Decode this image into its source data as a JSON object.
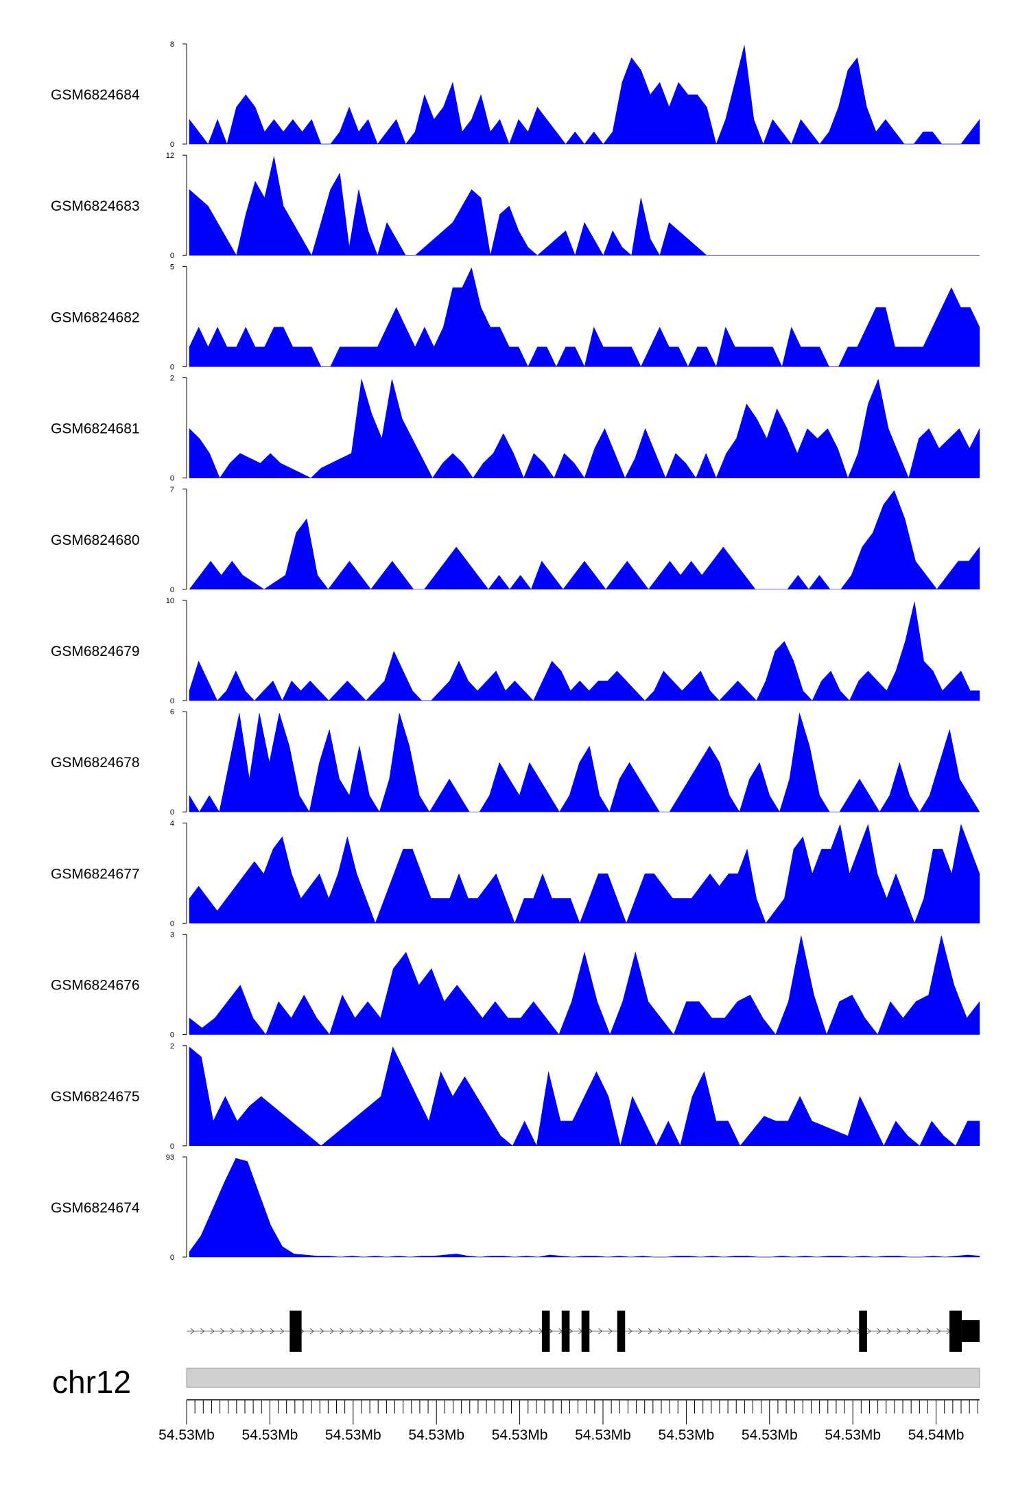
{
  "chart_data": {
    "type": "area",
    "chromosome": "chr12",
    "x_tick_labels": [
      "54.53Mb",
      "54.53Mb",
      "54.53Mb",
      "54.53Mb",
      "54.53Mb",
      "54.53Mb",
      "54.53Mb",
      "54.53Mb",
      "54.53Mb",
      "54.54Mb"
    ],
    "fill_color": "#0000FF",
    "series": [
      {
        "name": "GSM6824684",
        "ymax": 8,
        "values": [
          2,
          1,
          0,
          2,
          0,
          3,
          4,
          3,
          1,
          2,
          1,
          2,
          1,
          2,
          0,
          0,
          1,
          3,
          1,
          2,
          0,
          1,
          2,
          0,
          1,
          4,
          2,
          3,
          5,
          1,
          2,
          4,
          1,
          2,
          0,
          2,
          1,
          3,
          2,
          1,
          0,
          1,
          0,
          1,
          0,
          1,
          5,
          7,
          6,
          4,
          5,
          3,
          5,
          4,
          4,
          3,
          0,
          2,
          5,
          8,
          2,
          0,
          2,
          1,
          0,
          2,
          1,
          0,
          1,
          3,
          6,
          7,
          3,
          1,
          2,
          1,
          0,
          0,
          1,
          1,
          0,
          0,
          0,
          1,
          2
        ]
      },
      {
        "name": "GSM6824683",
        "ymax": 12,
        "values": [
          8,
          7,
          6,
          4,
          2,
          0,
          5,
          9,
          7,
          12,
          6,
          4,
          2,
          0,
          4,
          8,
          10,
          1,
          8,
          3,
          0,
          4,
          2,
          0,
          0,
          1,
          2,
          3,
          4,
          6,
          8,
          7,
          0,
          5,
          6,
          3,
          1,
          0,
          1,
          2,
          3,
          0,
          4,
          2,
          0,
          3,
          1,
          0,
          7,
          2,
          0,
          4,
          3,
          2,
          1,
          0,
          0,
          0,
          0,
          0,
          0,
          0,
          0,
          0,
          0,
          0,
          0,
          0,
          0,
          0,
          0,
          0,
          0,
          0,
          0,
          0,
          0,
          0,
          0,
          0,
          0,
          0,
          0,
          0,
          0
        ]
      },
      {
        "name": "GSM6824682",
        "ymax": 5,
        "values": [
          1,
          2,
          1,
          2,
          1,
          1,
          2,
          1,
          1,
          2,
          2,
          1,
          1,
          1,
          0,
          0,
          1,
          1,
          1,
          1,
          1,
          2,
          3,
          2,
          1,
          2,
          1,
          2,
          4,
          4,
          5,
          3,
          2,
          2,
          1,
          1,
          0,
          1,
          1,
          0,
          1,
          1,
          0,
          2,
          1,
          1,
          1,
          1,
          0,
          1,
          2,
          1,
          1,
          0,
          1,
          1,
          0,
          2,
          1,
          1,
          1,
          1,
          1,
          0,
          2,
          1,
          1,
          1,
          0,
          0,
          1,
          1,
          2,
          3,
          3,
          1,
          1,
          1,
          1,
          2,
          3,
          4,
          3,
          3,
          2
        ]
      },
      {
        "name": "GSM6824681",
        "ymax": 2,
        "values": [
          1,
          0.8,
          0.5,
          0,
          0.3,
          0.5,
          0.4,
          0.3,
          0.5,
          0.3,
          0.2,
          0.1,
          0,
          0.2,
          0.3,
          0.4,
          0.5,
          2,
          1.3,
          0.8,
          2,
          1.2,
          0.8,
          0.4,
          0,
          0.3,
          0.5,
          0.3,
          0,
          0.3,
          0.5,
          0.9,
          0.5,
          0,
          0.5,
          0.3,
          0,
          0.5,
          0.3,
          0,
          0.6,
          1,
          0.5,
          0,
          0.4,
          1,
          0.5,
          0,
          0.5,
          0.3,
          0,
          0.5,
          0,
          0.5,
          0.8,
          1.5,
          1.2,
          0.8,
          1.4,
          1,
          0.5,
          1,
          0.8,
          1,
          0.6,
          0,
          0.5,
          1.5,
          2,
          1,
          0.5,
          0,
          0.8,
          1,
          0.6,
          0.8,
          1,
          0.6,
          1
        ]
      },
      {
        "name": "GSM6824680",
        "ymax": 7,
        "values": [
          0,
          1,
          2,
          1,
          2,
          1,
          0.5,
          0,
          0.5,
          1,
          4,
          5,
          1,
          0,
          1,
          2,
          1,
          0,
          1,
          2,
          1,
          0,
          0,
          1,
          2,
          3,
          2,
          1,
          0,
          1,
          0,
          1,
          0,
          2,
          1,
          0,
          1,
          2,
          1,
          0,
          1,
          2,
          1,
          0,
          1,
          2,
          1,
          2,
          1,
          2,
          3,
          2,
          1,
          0,
          0,
          0,
          0,
          1,
          0,
          1,
          0,
          0,
          1,
          3,
          4,
          6,
          7,
          5,
          2,
          1,
          0,
          1,
          2,
          2,
          3
        ]
      },
      {
        "name": "GSM6824679",
        "ymax": 10,
        "values": [
          1,
          4,
          2,
          0,
          1,
          3,
          1,
          0,
          1,
          2,
          0,
          2,
          1,
          2,
          1,
          0,
          1,
          2,
          1,
          0,
          1,
          2,
          5,
          3,
          1,
          0,
          0,
          1,
          2,
          4,
          2,
          1,
          2,
          3,
          1,
          2,
          1,
          0,
          2,
          4,
          3,
          1,
          2,
          1,
          2,
          2,
          3,
          2,
          1,
          0,
          1,
          3,
          2,
          1,
          2,
          3,
          1,
          0,
          1,
          2,
          1,
          0,
          2,
          5,
          6,
          4,
          1,
          0,
          2,
          3,
          1,
          0,
          2,
          3,
          2,
          1,
          3,
          6,
          10,
          4,
          3,
          1,
          2,
          3,
          1,
          1
        ]
      },
      {
        "name": "GSM6824678",
        "ymax": 6,
        "values": [
          1,
          0,
          1,
          0,
          3,
          6,
          2,
          6,
          3,
          6,
          4,
          1,
          0,
          3,
          5,
          2,
          1,
          4,
          1,
          0,
          2,
          6,
          4,
          1,
          0,
          1,
          2,
          1,
          0,
          0,
          1,
          3,
          2,
          1,
          3,
          2,
          1,
          0,
          1,
          3,
          4,
          1,
          0,
          2,
          3,
          2,
          1,
          0,
          0,
          1,
          2,
          3,
          4,
          3,
          1,
          0,
          2,
          3,
          1,
          0,
          2,
          6,
          4,
          1,
          0,
          0,
          1,
          2,
          1,
          0,
          1,
          3,
          1,
          0,
          1,
          3,
          5,
          2,
          1,
          0
        ]
      },
      {
        "name": "GSM6824677",
        "ymax": 4,
        "values": [
          1,
          1.5,
          1,
          0.5,
          1,
          1.5,
          2,
          2.5,
          2,
          3,
          3.5,
          2,
          1,
          1.5,
          2,
          1,
          2,
          3.5,
          2,
          1,
          0,
          1,
          2,
          3,
          3,
          2,
          1,
          1,
          1,
          2,
          1,
          1,
          1.5,
          2,
          1,
          0,
          1,
          1,
          2,
          1,
          1,
          1,
          0,
          1,
          2,
          2,
          1,
          0,
          1,
          2,
          2,
          1.5,
          1,
          1,
          1,
          1.5,
          2,
          1.5,
          2,
          2,
          3,
          1,
          0,
          0.5,
          1,
          3,
          3.5,
          2,
          3,
          3,
          4,
          2,
          3,
          4,
          2,
          1,
          2,
          1,
          0,
          1,
          3,
          3,
          2,
          4,
          3,
          2
        ]
      },
      {
        "name": "GSM6824676",
        "ymax": 3,
        "values": [
          0.5,
          0.2,
          0.5,
          1,
          1.5,
          0.5,
          0,
          1,
          0.5,
          1.2,
          0.5,
          0,
          1.2,
          0.5,
          1,
          0.5,
          2,
          2.5,
          1.5,
          2,
          1,
          1.5,
          1,
          0.5,
          1,
          0.5,
          0.5,
          1,
          0.5,
          0,
          1,
          2.5,
          1,
          0,
          1,
          2.5,
          1,
          0.5,
          0,
          1,
          1,
          0.5,
          0.5,
          1,
          1.2,
          0.5,
          0,
          1,
          3,
          1.2,
          0,
          1,
          1.2,
          0.5,
          0,
          1,
          0.5,
          1,
          1.2,
          3,
          1.5,
          0.5,
          1
        ]
      },
      {
        "name": "GSM6824675",
        "ymax": 2,
        "values": [
          2,
          1.8,
          0.5,
          1,
          0.5,
          0.8,
          1,
          0.8,
          0.6,
          0.4,
          0.2,
          0,
          0.2,
          0.4,
          0.6,
          0.8,
          1,
          2,
          1.5,
          1,
          0.5,
          1.5,
          1,
          1.4,
          1,
          0.6,
          0.2,
          0,
          0.5,
          0,
          1.5,
          0.5,
          0.5,
          1,
          1.5,
          1,
          0,
          1,
          0.5,
          0,
          0.5,
          0,
          1,
          1.5,
          0.5,
          0.5,
          0,
          0.3,
          0.6,
          0.5,
          0.5,
          1,
          0.5,
          0.4,
          0.3,
          0.2,
          1,
          0.5,
          0,
          0.5,
          0.2,
          0,
          0.5,
          0.2,
          0,
          0.5,
          0.5
        ]
      },
      {
        "name": "GSM6824674",
        "ymax": 93,
        "values": [
          5,
          20,
          45,
          70,
          93,
          90,
          60,
          30,
          10,
          3,
          2,
          1,
          1,
          0,
          1,
          0,
          1,
          0,
          1,
          0,
          1,
          1,
          2,
          3,
          1,
          0,
          1,
          1,
          0,
          1,
          0,
          2,
          1,
          0,
          1,
          1,
          0,
          1,
          0,
          1,
          0,
          0,
          1,
          1,
          0,
          1,
          0,
          1,
          1,
          0,
          0,
          1,
          0,
          1,
          0,
          1,
          1,
          0,
          1,
          0,
          1,
          1,
          0,
          0,
          1,
          0,
          1,
          2,
          1
        ]
      }
    ],
    "gene": {
      "strand": "+",
      "exons": [
        {
          "start": 0.13,
          "end": 0.145
        },
        {
          "start": 0.448,
          "end": 0.458
        },
        {
          "start": 0.473,
          "end": 0.483
        },
        {
          "start": 0.498,
          "end": 0.508
        },
        {
          "start": 0.543,
          "end": 0.553
        },
        {
          "start": 0.848,
          "end": 0.858
        }
      ],
      "last_exon_start": 0.962
    }
  }
}
